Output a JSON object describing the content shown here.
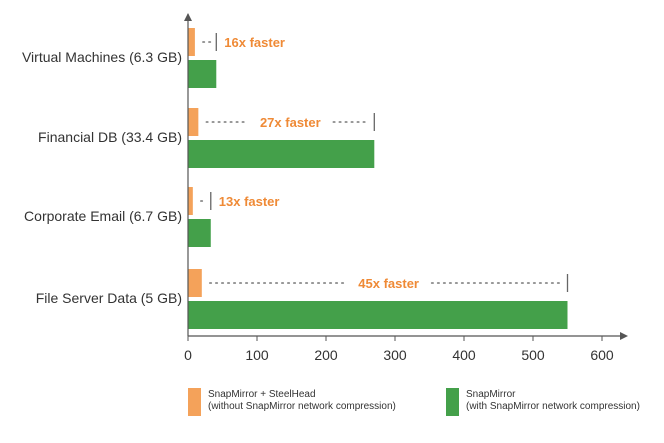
{
  "chart_data": {
    "type": "bar",
    "orientation": "horizontal",
    "categories": [
      "Virtual Machines (6.3 GB)",
      "Financial DB (33.4 GB)",
      "Corporate Email (6.7 GB)",
      "File Server Data (5 GB)"
    ],
    "series": [
      {
        "name": "SnapMirror + SteelHead",
        "name_detail": "(without SnapMirror network compression)",
        "color": "#f4a25a",
        "values": [
          10,
          15,
          7,
          20
        ]
      },
      {
        "name": "SnapMirror",
        "name_detail": "(with SnapMirror network compression)",
        "color": "#44a04a",
        "values": [
          41,
          270,
          33,
          550
        ]
      }
    ],
    "annotations": [
      "16x faster",
      "27x faster",
      "13x faster",
      "45x faster"
    ],
    "annotation_color": "#ef8a36",
    "x_ticks": [
      0,
      100,
      200,
      300,
      400,
      500,
      600
    ],
    "xlim": [
      0,
      600
    ],
    "grid": false,
    "legend_position": "bottom"
  }
}
